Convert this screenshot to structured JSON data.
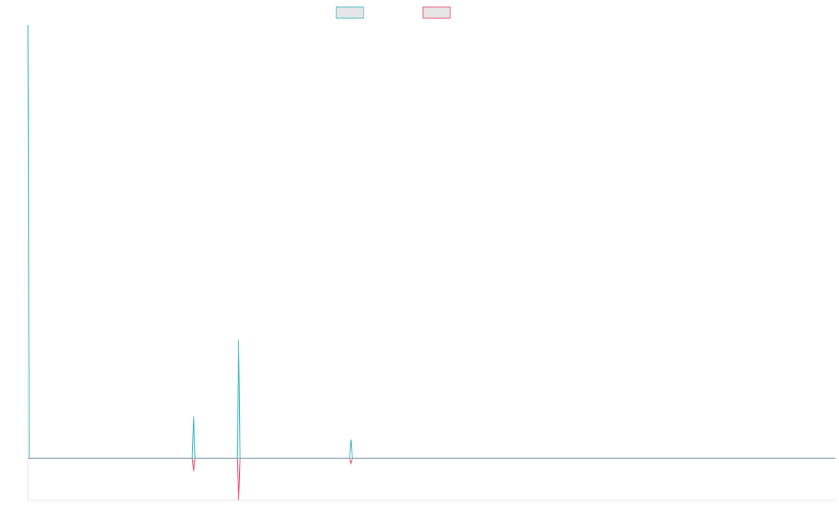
{
  "chart_data": {
    "type": "line",
    "title": "",
    "xlabel": "",
    "ylabel": "",
    "legend": {
      "position": "top-center"
    },
    "grid": false,
    "xlim": [
      0,
      575
    ],
    "ylim": [
      -60,
      620
    ],
    "x": [
      0,
      1,
      2,
      117,
      118,
      119,
      149,
      150,
      151,
      229,
      230,
      231,
      575
    ],
    "series": [
      {
        "name": "",
        "color": "#36b5c0",
        "values": [
          620,
          0,
          0,
          0,
          60,
          0,
          0,
          170,
          0,
          0,
          27,
          0,
          0
        ]
      },
      {
        "name": "",
        "color": "#e8486b",
        "values": [
          0,
          0,
          0,
          0,
          -18,
          0,
          0,
          -60,
          0,
          0,
          -7,
          0,
          0
        ]
      }
    ],
    "legend_fill": "#e6e6e6"
  }
}
